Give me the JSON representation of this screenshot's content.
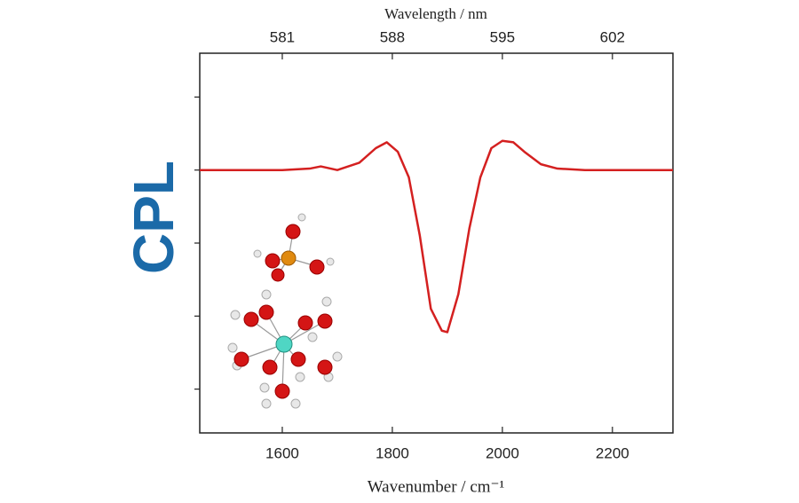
{
  "chart_data": {
    "type": "line",
    "y_label": "CPL",
    "x_label": "Wavenumber / cm⁻¹",
    "x2_label": "Wavelength / nm",
    "xlim": [
      1450,
      2310
    ],
    "xticks": [
      1600,
      1800,
      2000,
      2200
    ],
    "x2lim": [
      575.75,
      605.85
    ],
    "x2ticks": [
      581,
      588,
      595,
      602
    ],
    "ylim": [
      -3.6,
      1.6
    ],
    "yticks": [
      -3,
      -2,
      -1,
      0,
      1
    ],
    "x": [
      1450,
      1500,
      1600,
      1650,
      1670,
      1700,
      1740,
      1770,
      1790,
      1810,
      1830,
      1850,
      1870,
      1890,
      1900,
      1920,
      1940,
      1960,
      1980,
      2000,
      2020,
      2040,
      2070,
      2100,
      2150,
      2200,
      2310
    ],
    "series": [
      {
        "color": "#d42020",
        "values": [
          0,
          0,
          0,
          0.02,
          0.05,
          0,
          0.1,
          0.3,
          0.38,
          0.25,
          -0.1,
          -0.9,
          -1.9,
          -2.2,
          -2.22,
          -1.7,
          -0.8,
          -0.1,
          0.3,
          0.4,
          0.38,
          0.25,
          0.08,
          0.02,
          0,
          0,
          0
        ]
      }
    ]
  }
}
